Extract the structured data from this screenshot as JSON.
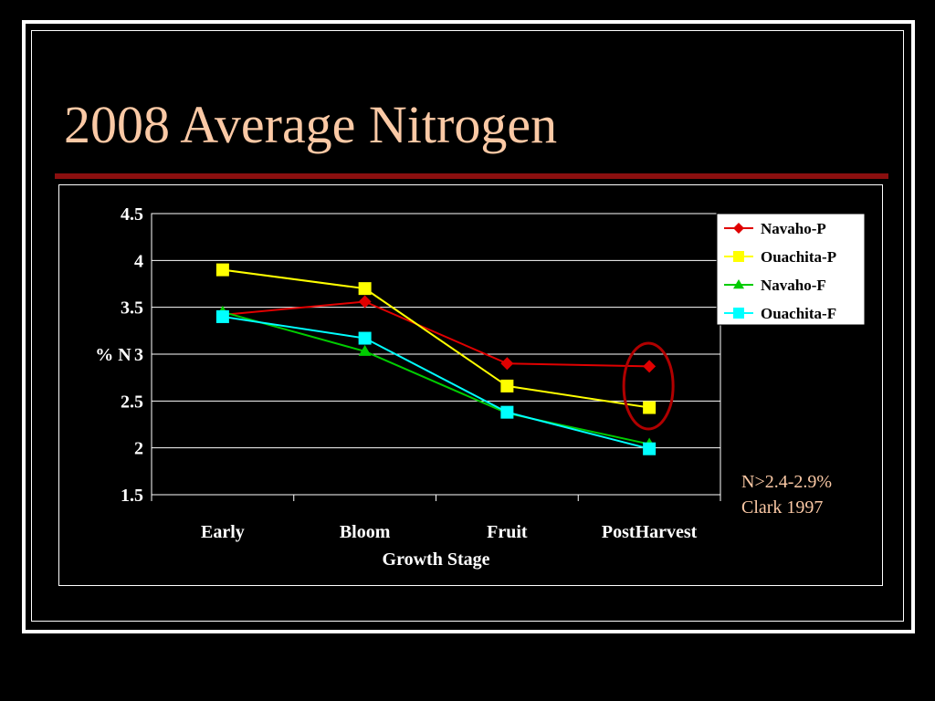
{
  "slide": {
    "title": "2008 Average Nitrogen",
    "title_color": "#FBC9A5",
    "rule_color": "#8B0F0F",
    "note_line1": "N>2.4-2.9%",
    "note_line2": "Clark 1997"
  },
  "chart_data": {
    "type": "line",
    "title": "",
    "xlabel": "Growth Stage",
    "ylabel": "% N",
    "categories": [
      "Early",
      "Bloom",
      "Fruit",
      "PostHarvest"
    ],
    "ylim": [
      1.5,
      4.5
    ],
    "yticks": [
      "1.5",
      "2",
      "2.5",
      "3",
      "3.5",
      "4",
      "4.5"
    ],
    "grid": true,
    "legend_position": "top-right",
    "series": [
      {
        "name": "Navaho-P",
        "values": [
          3.42,
          3.56,
          2.9,
          2.87
        ],
        "color": "#E00000",
        "marker": "diamond"
      },
      {
        "name": "Ouachita-P",
        "values": [
          3.9,
          3.7,
          2.66,
          2.43
        ],
        "color": "#FFFF00",
        "marker": "square"
      },
      {
        "name": "Navaho-F",
        "values": [
          3.45,
          3.03,
          2.37,
          2.04
        ],
        "color": "#00CC00",
        "marker": "triangle"
      },
      {
        "name": "Ouachita-F",
        "values": [
          3.4,
          3.17,
          2.38,
          1.99
        ],
        "color": "#00FFFF",
        "marker": "square"
      }
    ],
    "annotation": {
      "type": "ellipse",
      "category": "PostHarvest",
      "color": "#B00000"
    }
  }
}
